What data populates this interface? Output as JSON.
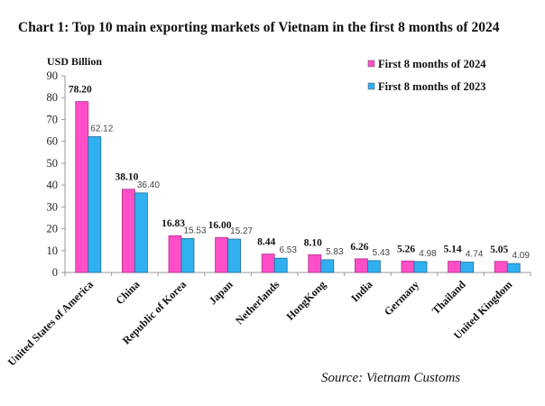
{
  "chart_data": {
    "type": "bar",
    "title": "Chart 1: Top 10 main exporting markets of Vietnam in the first 8 months of 2024",
    "ylabel": "USD Billion",
    "xlabel": "",
    "ylim": [
      0,
      90
    ],
    "yticks": [
      0,
      10,
      20,
      30,
      40,
      50,
      60,
      70,
      80,
      90
    ],
    "grid": false,
    "legend_position": "top-right",
    "categories": [
      "United States of America",
      "China",
      "Republic of Korea",
      "Japan",
      "Netherlands",
      "HongKong",
      "India",
      "Germany",
      "Thailand",
      "United Kingdom"
    ],
    "series": [
      {
        "name": "First 8 months of 2024",
        "color": "#ff4fc8",
        "values": [
          78.2,
          38.1,
          16.83,
          16.0,
          8.44,
          8.1,
          6.26,
          5.26,
          5.14,
          5.05
        ],
        "labels": [
          "78.20",
          "38.10",
          "16.83",
          "16.00",
          "8.44",
          "8.10",
          "6.26",
          "5.26",
          "5.14",
          "5.05"
        ]
      },
      {
        "name": "First 8 months of 2023",
        "color": "#30b0f0",
        "values": [
          62.12,
          36.4,
          15.53,
          15.27,
          6.53,
          5.83,
          5.43,
          4.98,
          4.74,
          4.09
        ],
        "labels": [
          "62.12",
          "36.40",
          "15.53",
          "15.27",
          "6.53",
          "5.83",
          "5.43",
          "4.98",
          "4.74",
          "4.09"
        ]
      }
    ],
    "annotations": [
      "Source: Vietnam Customs"
    ]
  }
}
